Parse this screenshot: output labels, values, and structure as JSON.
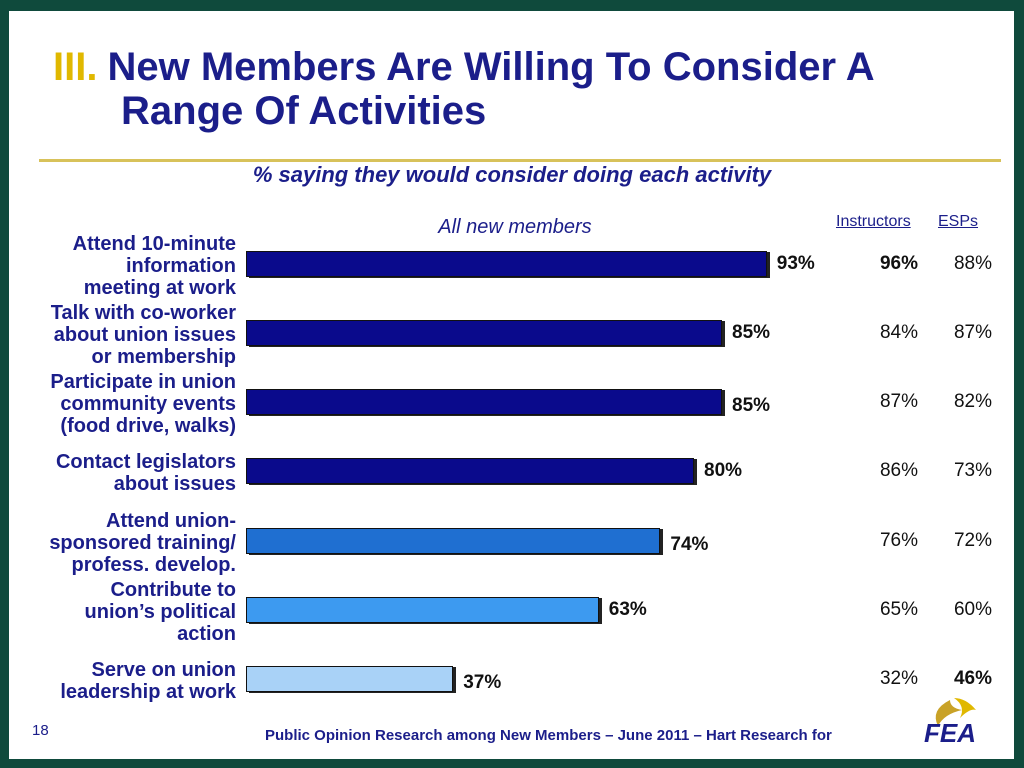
{
  "title": {
    "number": "III.",
    "line1": "New Members Are Willing To Consider A",
    "line2": "Range Of Activities"
  },
  "footer": {
    "page": "18",
    "source": "Public Opinion Research among New Members – June 2011 – Hart Research for",
    "logo_text": "FEA"
  },
  "chart_data": {
    "type": "bar",
    "orientation": "horizontal",
    "title": "% saying they would consider doing each activity",
    "series_label": "All new members",
    "categories": [
      [
        "Attend 10-minute",
        "information",
        "meeting at work"
      ],
      [
        "Talk with co-worker",
        "about union issues",
        "or membership"
      ],
      [
        "Participate in union",
        "community events",
        "(food drive, walks)"
      ],
      [
        "Contact legislators",
        "about issues"
      ],
      [
        "Attend union-",
        "sponsored training/",
        "profess. develop."
      ],
      [
        "Contribute to",
        "union’s political",
        "action"
      ],
      [
        "Serve on union",
        "leadership at work"
      ]
    ],
    "values": [
      93,
      85,
      85,
      80,
      74,
      63,
      37
    ],
    "value_labels": [
      "93%",
      "85%",
      "85%",
      "80%",
      "74%",
      "63%",
      "37%"
    ],
    "bar_colors": [
      "#0a0a8c",
      "#0a0a8c",
      "#0a0a8c",
      "#0a0a8c",
      "#1f6fd1",
      "#3d9af0",
      "#a9d2f7"
    ],
    "xlim": [
      0,
      100
    ],
    "table": {
      "headers": [
        "Instructors",
        "ESPs"
      ],
      "rows": [
        [
          "96%",
          "88%"
        ],
        [
          "84%",
          "87%"
        ],
        [
          "87%",
          "82%"
        ],
        [
          "86%",
          "73%"
        ],
        [
          "76%",
          "72%"
        ],
        [
          "65%",
          "60%"
        ],
        [
          "32%",
          "46%"
        ]
      ],
      "bold_cells": [
        [
          0,
          0
        ],
        [
          6,
          1
        ]
      ]
    }
  }
}
